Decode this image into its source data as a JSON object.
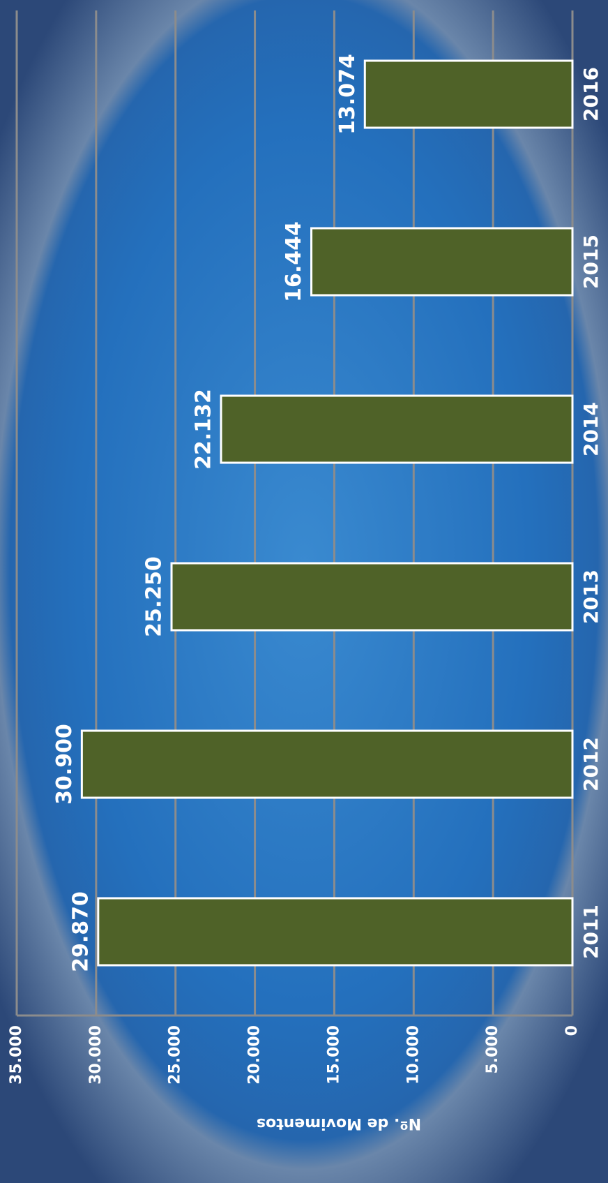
{
  "chart_data": {
    "type": "bar",
    "y_axis_label": "Nº. de Movimentos",
    "categories": [
      "2011",
      "2012",
      "2013",
      "2014",
      "2015",
      "2016"
    ],
    "values": [
      29870,
      30900,
      25250,
      22132,
      16444,
      13074
    ],
    "value_labels": [
      "29.870",
      "30.900",
      "25.250",
      "22.132",
      "16.444",
      "13.074"
    ],
    "color": "#4f6228",
    "ylim": [
      0,
      35000
    ],
    "yticks": [
      0,
      {
        "value": 5000,
        "label": "5.000"
      },
      {
        "value": 10000,
        "label": "10.000"
      },
      {
        "value": 15000,
        "label": "15.000"
      },
      {
        "value": 20000,
        "label": "20.000"
      },
      {
        "value": 25000,
        "label": "25.000"
      },
      {
        "value": 30000,
        "label": "30.000"
      },
      {
        "value": 35000,
        "label": "35.000"
      }
    ],
    "grid": true
  }
}
